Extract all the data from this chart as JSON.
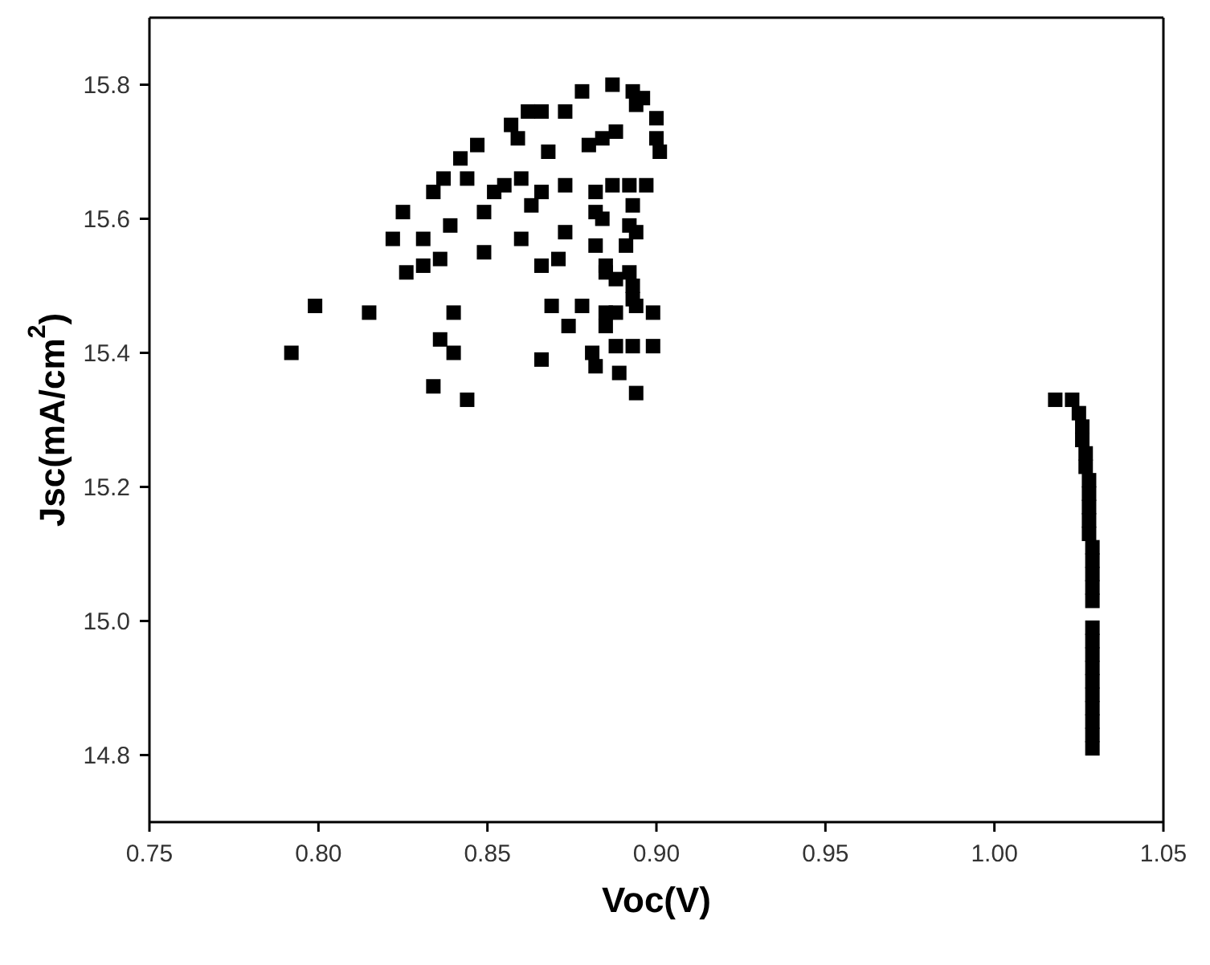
{
  "chart_data": {
    "type": "scatter",
    "xlabel": "Voc(V)",
    "ylabel": "Jsc(mA/cm$^{2}$)",
    "marker": "square",
    "xlim": [
      0.75,
      1.05
    ],
    "ylim": [
      14.7,
      15.9
    ],
    "xticks": [
      {
        "value": 0.75,
        "label": "0.75"
      },
      {
        "value": 0.8,
        "label": "0.80"
      },
      {
        "value": 0.85,
        "label": "0.85"
      },
      {
        "value": 0.9,
        "label": "0.90"
      },
      {
        "value": 0.95,
        "label": "0.95"
      },
      {
        "value": 1.0,
        "label": "1.00"
      },
      {
        "value": 1.05,
        "label": "1.05"
      }
    ],
    "yticks": [
      {
        "value": 14.8,
        "label": "14.8"
      },
      {
        "value": 15.0,
        "label": "15.0"
      },
      {
        "value": 15.2,
        "label": "15.2"
      },
      {
        "value": 15.4,
        "label": "15.4"
      },
      {
        "value": 15.6,
        "label": "15.6"
      },
      {
        "value": 15.8,
        "label": "15.8"
      }
    ],
    "series": [
      {
        "color": "#000000",
        "x": [
          0.792,
          0.799,
          0.815,
          0.825,
          0.822,
          0.831,
          0.826,
          0.831,
          0.836,
          0.839,
          0.834,
          0.837,
          0.842,
          0.844,
          0.847,
          0.849,
          0.849,
          0.84,
          0.836,
          0.84,
          0.834,
          0.844,
          0.852,
          0.855,
          0.86,
          0.863,
          0.866,
          0.873,
          0.86,
          0.873,
          0.866,
          0.871,
          0.857,
          0.859,
          0.862,
          0.866,
          0.868,
          0.873,
          0.878,
          0.88,
          0.884,
          0.888,
          0.887,
          0.893,
          0.894,
          0.896,
          0.9,
          0.9,
          0.901,
          0.882,
          0.887,
          0.892,
          0.897,
          0.882,
          0.884,
          0.893,
          0.892,
          0.894,
          0.891,
          0.882,
          0.885,
          0.885,
          0.888,
          0.892,
          0.893,
          0.893,
          0.894,
          0.899,
          0.885,
          0.888,
          0.885,
          0.878,
          0.869,
          0.874,
          0.888,
          0.893,
          0.899,
          0.881,
          0.882,
          0.889,
          0.866,
          0.894
        ],
        "values": [
          15.4,
          15.47,
          15.46,
          15.61,
          15.57,
          15.57,
          15.52,
          15.53,
          15.54,
          15.59,
          15.64,
          15.66,
          15.69,
          15.66,
          15.71,
          15.61,
          15.55,
          15.46,
          15.42,
          15.4,
          15.35,
          15.33,
          15.64,
          15.65,
          15.66,
          15.62,
          15.64,
          15.65,
          15.57,
          15.58,
          15.53,
          15.54,
          15.74,
          15.72,
          15.76,
          15.76,
          15.7,
          15.76,
          15.79,
          15.71,
          15.72,
          15.73,
          15.8,
          15.79,
          15.77,
          15.78,
          15.75,
          15.72,
          15.7,
          15.64,
          15.65,
          15.65,
          15.65,
          15.61,
          15.6,
          15.62,
          15.59,
          15.58,
          15.56,
          15.56,
          15.53,
          15.52,
          15.51,
          15.52,
          15.5,
          15.48,
          15.47,
          15.46,
          15.46,
          15.46,
          15.44,
          15.47,
          15.47,
          15.44,
          15.41,
          15.41,
          15.41,
          15.4,
          15.38,
          15.37,
          15.39,
          15.34
        ]
      },
      {
        "color": "#000000",
        "x": [
          1.018,
          1.023,
          1.025,
          1.026,
          1.026,
          1.027,
          1.027,
          1.028,
          1.028,
          1.028,
          1.028,
          1.028,
          1.029,
          1.029,
          1.029,
          1.029,
          1.029,
          1.029,
          1.029,
          1.029,
          1.029,
          1.029,
          1.029,
          1.029,
          1.029,
          1.029,
          1.029
        ],
        "values": [
          15.33,
          15.33,
          15.31,
          15.29,
          15.27,
          15.25,
          15.23,
          15.21,
          15.19,
          15.17,
          15.15,
          15.13,
          15.11,
          15.09,
          15.07,
          15.05,
          15.03,
          14.99,
          14.97,
          14.95,
          14.93,
          14.91,
          14.89,
          14.87,
          14.85,
          14.83,
          14.81
        ]
      }
    ]
  }
}
